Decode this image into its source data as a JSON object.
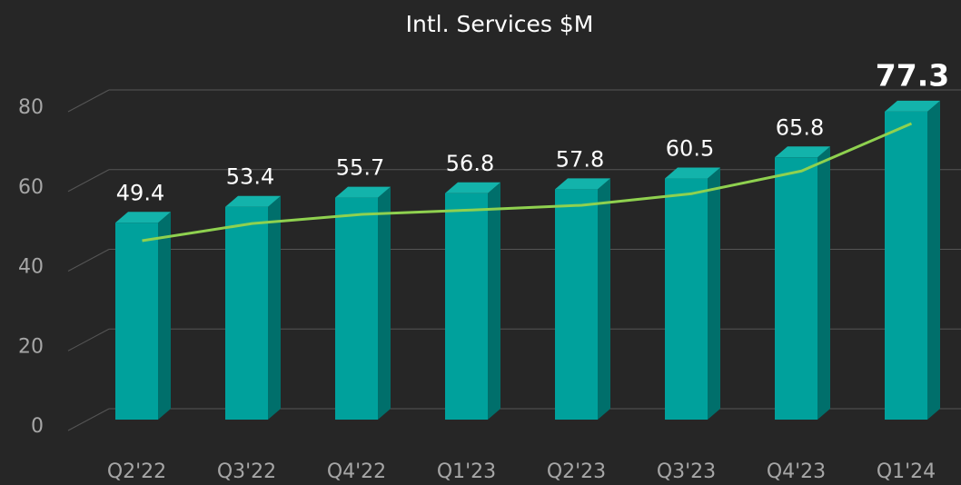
{
  "chart_data": {
    "type": "bar",
    "title": "Intl. Services $M",
    "categories": [
      "Q2'22",
      "Q3'22",
      "Q4'22",
      "Q1'23",
      "Q2'23",
      "Q3'23",
      "Q4'23",
      "Q1'24"
    ],
    "values": [
      49.4,
      53.4,
      55.7,
      56.8,
      57.8,
      60.5,
      65.8,
      77.3
    ],
    "color": "#00a19c",
    "highlight_index": 7,
    "trendline": {
      "color": "#8fd14f",
      "values": [
        44.9,
        49.2,
        51.5,
        52.6,
        53.8,
        56.7,
        62.4,
        74.3
      ]
    },
    "ylim": [
      0,
      80
    ],
    "yticks": [
      0,
      20,
      40,
      60,
      80
    ],
    "grid": true
  }
}
